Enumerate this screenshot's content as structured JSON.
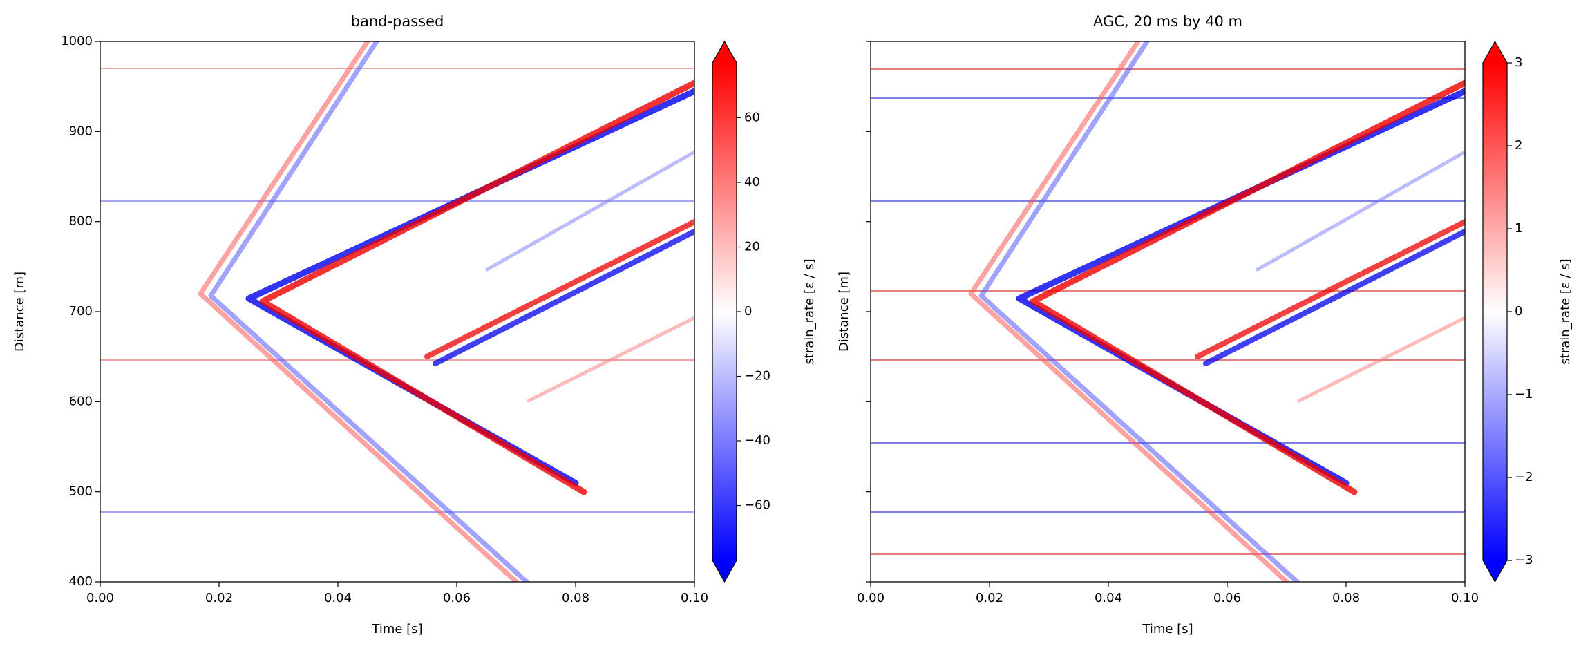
{
  "chart_data": [
    {
      "type": "heatmap",
      "title": "band-passed",
      "xlabel": "Time [s]",
      "ylabel": "Distance [m]",
      "xlim": [
        0,
        0.1
      ],
      "ylim": [
        400,
        1000
      ],
      "xticks": [
        {
          "value": 0,
          "label": "0.00"
        },
        {
          "value": 0.02,
          "label": "0.02"
        },
        {
          "value": 0.04,
          "label": "0.04"
        },
        {
          "value": 0.06,
          "label": "0.06"
        },
        {
          "value": 0.08,
          "label": "0.08"
        },
        {
          "value": 0.1,
          "label": "0.10"
        }
      ],
      "yticks": [
        400,
        500,
        600,
        700,
        800,
        900,
        1000
      ],
      "ytick_labels": true,
      "cmap": "bwr",
      "clim": [
        -77,
        77
      ],
      "colorbar_label": "strain_rate [ε / s]",
      "extend": "both",
      "cticks": [
        {
          "value": -60,
          "label": "−60"
        },
        {
          "value": -40,
          "label": "−40"
        },
        {
          "value": -20,
          "label": "−20"
        },
        0,
        20,
        40,
        60
      ]
    },
    {
      "type": "heatmap",
      "title": "AGC, 20 ms by 40 m",
      "xlabel": "Time [s]",
      "ylabel": "Distance [m]",
      "xlim": [
        0,
        0.1
      ],
      "ylim": [
        400,
        1000
      ],
      "xticks": [
        {
          "value": 0,
          "label": "0.00"
        },
        {
          "value": 0.02,
          "label": "0.02"
        },
        {
          "value": 0.04,
          "label": "0.04"
        },
        {
          "value": 0.06,
          "label": "0.06"
        },
        {
          "value": 0.08,
          "label": "0.08"
        },
        {
          "value": 0.1,
          "label": "0.10"
        }
      ],
      "yticks": [
        400,
        500,
        600,
        700,
        800,
        900,
        1000
      ],
      "ytick_labels": false,
      "cmap": "bwr",
      "clim": [
        -3,
        3
      ],
      "colorbar_label": "strain_rate [ε / s]",
      "extend": "both",
      "cticks": [
        {
          "value": -3,
          "label": "−3"
        },
        {
          "value": -2,
          "label": "−2"
        },
        {
          "value": -1,
          "label": "−1"
        },
        0,
        1,
        2,
        3
      ]
    }
  ]
}
